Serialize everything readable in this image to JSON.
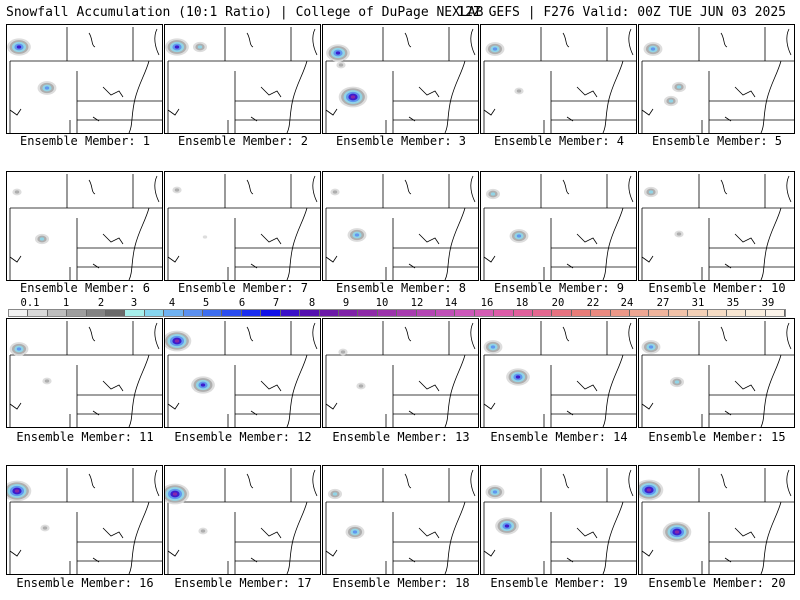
{
  "header": {
    "title": "Snowfall Accumulation (10:1 Ratio) | College of DuPage NEXLAB",
    "run_info": "12Z GEFS | F276 Valid: 00Z TUE JUN 03 2025"
  },
  "legend": {
    "labels": [
      "0.1",
      "1",
      "2",
      "3",
      "4",
      "5",
      "6",
      "7",
      "8",
      "9",
      "10",
      "12",
      "14",
      "16",
      "18",
      "20",
      "22",
      "24",
      "27",
      "31",
      "35",
      "39"
    ],
    "colors": [
      "#f2f2f2",
      "#d9d9d9",
      "#bdbdbd",
      "#9e9e9e",
      "#838383",
      "#6a6a6a",
      "#a7f0ec",
      "#86d6f0",
      "#6fb2f2",
      "#5b90f0",
      "#3d6ef0",
      "#2a4df0",
      "#1a2ef0",
      "#1010e8",
      "#3a10c8",
      "#5510b0",
      "#6c1aa8",
      "#7f22a8",
      "#8e2aa8",
      "#9c33ac",
      "#a83cb0",
      "#b446b4",
      "#c050b8",
      "#cc58ba",
      "#d45cb4",
      "#dc5ca8",
      "#e0609c",
      "#e46890",
      "#e67280",
      "#e87c78",
      "#ea8a80",
      "#ec9888",
      "#eea692",
      "#f0b49c",
      "#f2c2a8",
      "#f4d0b6",
      "#f6dcc4",
      "#f8e6d2",
      "#faeede",
      "#fcf4ea"
    ]
  },
  "members": [
    {
      "label": "Ensemble Member: 1",
      "blobs": [
        {
          "x": 12,
          "y": 22,
          "level": 4
        },
        {
          "x": 40,
          "y": 63,
          "level": 3
        }
      ]
    },
    {
      "label": "Ensemble Member: 2",
      "blobs": [
        {
          "x": 12,
          "y": 22,
          "level": 4
        },
        {
          "x": 35,
          "y": 22,
          "level": 2
        }
      ]
    },
    {
      "label": "Ensemble Member: 3",
      "blobs": [
        {
          "x": 15,
          "y": 28,
          "level": 4
        },
        {
          "x": 30,
          "y": 72,
          "level": 5
        },
        {
          "x": 18,
          "y": 40,
          "level": 1
        }
      ]
    },
    {
      "label": "Ensemble Member: 4",
      "blobs": [
        {
          "x": 14,
          "y": 24,
          "level": 3
        },
        {
          "x": 38,
          "y": 66,
          "level": 1
        }
      ]
    },
    {
      "label": "Ensemble Member: 5",
      "blobs": [
        {
          "x": 14,
          "y": 24,
          "level": 3
        },
        {
          "x": 32,
          "y": 76,
          "level": 2
        },
        {
          "x": 40,
          "y": 62,
          "level": 2
        }
      ]
    },
    {
      "label": "Ensemble Member: 6",
      "blobs": [
        {
          "x": 10,
          "y": 20,
          "level": 1
        },
        {
          "x": 35,
          "y": 67,
          "level": 2
        }
      ]
    },
    {
      "label": "Ensemble Member: 7",
      "blobs": [
        {
          "x": 12,
          "y": 18,
          "level": 1
        },
        {
          "x": 40,
          "y": 65,
          "level": 0
        }
      ]
    },
    {
      "label": "Ensemble Member: 8",
      "blobs": [
        {
          "x": 12,
          "y": 20,
          "level": 1
        },
        {
          "x": 34,
          "y": 63,
          "level": 3
        }
      ]
    },
    {
      "label": "Ensemble Member: 9",
      "blobs": [
        {
          "x": 12,
          "y": 22,
          "level": 2
        },
        {
          "x": 38,
          "y": 64,
          "level": 3
        }
      ]
    },
    {
      "label": "Ensemble Member: 10",
      "blobs": [
        {
          "x": 12,
          "y": 20,
          "level": 2
        },
        {
          "x": 40,
          "y": 62,
          "level": 1
        }
      ]
    },
    {
      "label": "Ensemble Member: 11",
      "blobs": [
        {
          "x": 12,
          "y": 30,
          "level": 3
        },
        {
          "x": 40,
          "y": 62,
          "level": 1
        }
      ]
    },
    {
      "label": "Ensemble Member: 12",
      "blobs": [
        {
          "x": 12,
          "y": 22,
          "level": 5
        },
        {
          "x": 38,
          "y": 66,
          "level": 4
        }
      ]
    },
    {
      "label": "Ensemble Member: 13",
      "blobs": [
        {
          "x": 20,
          "y": 33,
          "level": 1
        },
        {
          "x": 38,
          "y": 67,
          "level": 1
        }
      ]
    },
    {
      "label": "Ensemble Member: 14",
      "blobs": [
        {
          "x": 12,
          "y": 28,
          "level": 3
        },
        {
          "x": 37,
          "y": 58,
          "level": 4
        }
      ]
    },
    {
      "label": "Ensemble Member: 15",
      "blobs": [
        {
          "x": 12,
          "y": 28,
          "level": 3
        },
        {
          "x": 38,
          "y": 63,
          "level": 2
        }
      ]
    },
    {
      "label": "Ensemble Member: 16",
      "blobs": [
        {
          "x": 10,
          "y": 25,
          "level": 5
        },
        {
          "x": 38,
          "y": 62,
          "level": 1
        }
      ]
    },
    {
      "label": "Ensemble Member: 17",
      "blobs": [
        {
          "x": 10,
          "y": 28,
          "level": 5
        },
        {
          "x": 38,
          "y": 65,
          "level": 1
        }
      ]
    },
    {
      "label": "Ensemble Member: 18",
      "blobs": [
        {
          "x": 12,
          "y": 28,
          "level": 2
        },
        {
          "x": 32,
          "y": 66,
          "level": 3
        }
      ]
    },
    {
      "label": "Ensemble Member: 19",
      "blobs": [
        {
          "x": 14,
          "y": 26,
          "level": 3
        },
        {
          "x": 26,
          "y": 60,
          "level": 4
        }
      ]
    },
    {
      "label": "Ensemble Member: 20",
      "blobs": [
        {
          "x": 10,
          "y": 24,
          "level": 5
        },
        {
          "x": 38,
          "y": 66,
          "level": 5
        }
      ]
    }
  ]
}
